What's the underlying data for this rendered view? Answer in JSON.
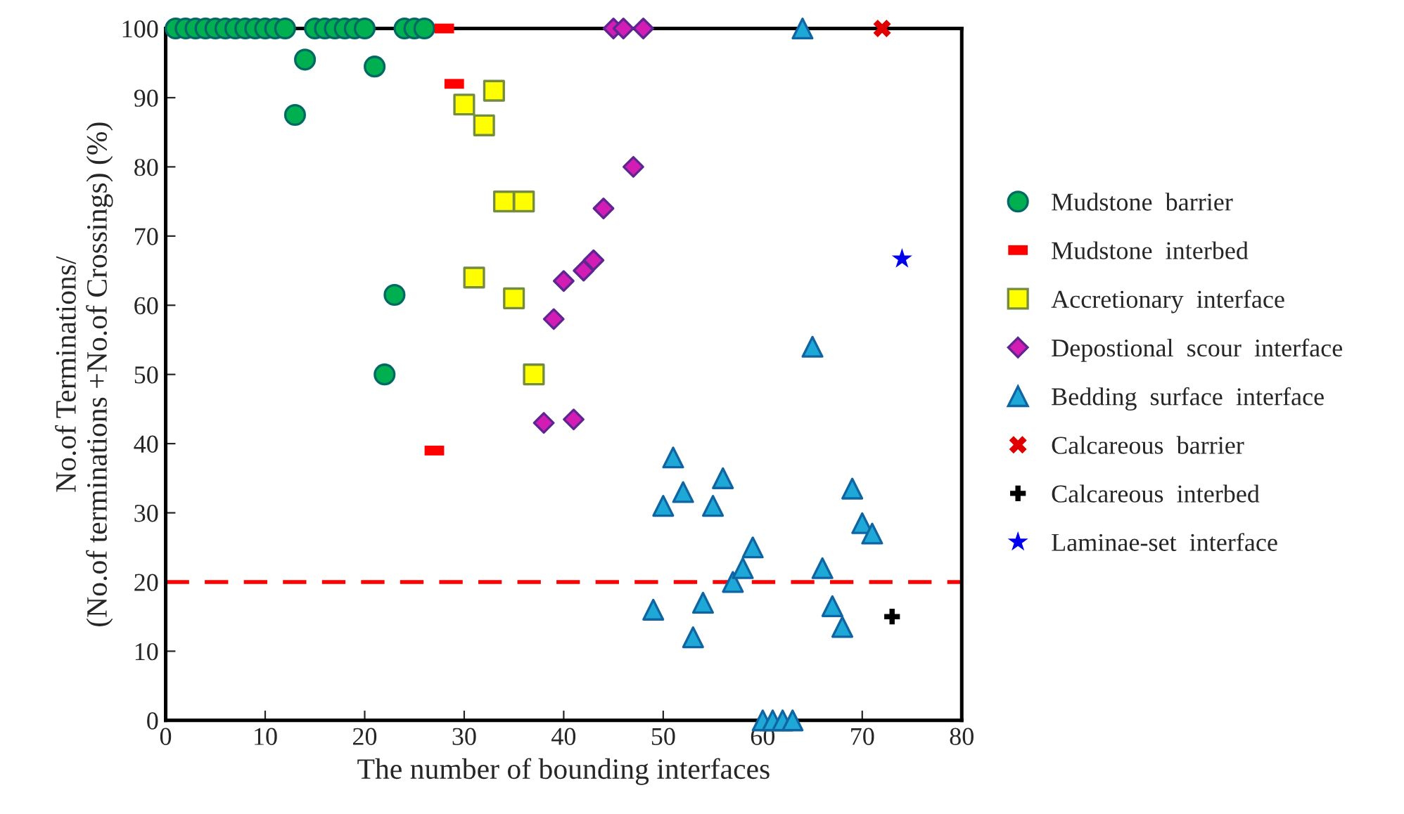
{
  "chart_data": {
    "type": "scatter",
    "xlabel": "The number of bounding interfaces",
    "ylabel": "No.of Terminations/\n(No.of terminations +No.of Crossings) (%)",
    "xlim": [
      0,
      80
    ],
    "xticks": [
      0,
      10,
      20,
      30,
      40,
      50,
      60,
      70,
      80
    ],
    "ylim": [
      0,
      100
    ],
    "yticks": [
      0,
      10,
      20,
      30,
      40,
      50,
      60,
      70,
      80,
      90,
      100
    ],
    "grid": false,
    "legend": "right",
    "series": [
      {
        "name": "Mudstone  barrier",
        "marker": "circle",
        "color": "#00b050",
        "x": [
          1,
          2,
          3,
          4,
          5,
          6,
          7,
          8,
          9,
          10,
          11,
          12,
          13,
          14,
          15,
          16,
          17,
          18,
          19,
          20,
          21,
          22,
          23,
          24,
          25,
          26
        ],
        "values": [
          100,
          100,
          100,
          100,
          100,
          100,
          100,
          100,
          100,
          100,
          100,
          100,
          87.5,
          95.5,
          100,
          100,
          100,
          100,
          100,
          100,
          94.5,
          50,
          61.5,
          100,
          100,
          100
        ]
      },
      {
        "name": "Mudstone  interbed",
        "color": "#ff0000",
        "x": [
          27,
          28,
          29
        ],
        "values": [
          39,
          100,
          92
        ]
      },
      {
        "name": "Accretionary  interface",
        "marker": "square",
        "color": "#ffff00",
        "x": [
          30,
          31,
          32,
          33,
          34,
          35,
          36,
          37
        ],
        "values": [
          89,
          64,
          86,
          91,
          75,
          61,
          75,
          50
        ]
      },
      {
        "name": "Depostional  scour  interface",
        "marker": "diamond",
        "color": "#d21cb4",
        "x": [
          38,
          39,
          40,
          41,
          42,
          43,
          44,
          45,
          46,
          47,
          48
        ],
        "values": [
          43,
          58,
          63.5,
          43.5,
          65,
          66.5,
          74,
          100,
          100,
          80,
          100
        ]
      },
      {
        "name": "Bedding  surface  interface",
        "marker": "triangle",
        "color": "#1ea8d8",
        "x": [
          49,
          50,
          51,
          52,
          53,
          54,
          55,
          56,
          57,
          58,
          59,
          60,
          61,
          62,
          63,
          64,
          65,
          66,
          67,
          68,
          69,
          70,
          71
        ],
        "values": [
          16,
          31,
          38,
          33,
          12,
          17,
          31,
          35,
          20,
          22,
          25,
          0,
          0,
          0,
          0,
          100,
          54,
          22,
          16.5,
          13.5,
          33.5,
          28.5,
          27
        ]
      },
      {
        "name": "Calcareous  barrier",
        "marker": "cross",
        "color": "#e00000",
        "x": [
          72
        ],
        "values": [
          100
        ]
      },
      {
        "name": "Calcareous  interbed",
        "marker": "plus",
        "color": "#000000",
        "x": [
          73
        ],
        "values": [
          15
        ]
      },
      {
        "name": "Laminae-set  interface",
        "marker": "star",
        "color": "#0000ee",
        "x": [
          74
        ],
        "values": [
          66.7
        ]
      }
    ],
    "ref_lines": [
      {
        "axis": "y",
        "value": 20,
        "color": "#ff0000",
        "line_style": "dashed"
      }
    ]
  }
}
